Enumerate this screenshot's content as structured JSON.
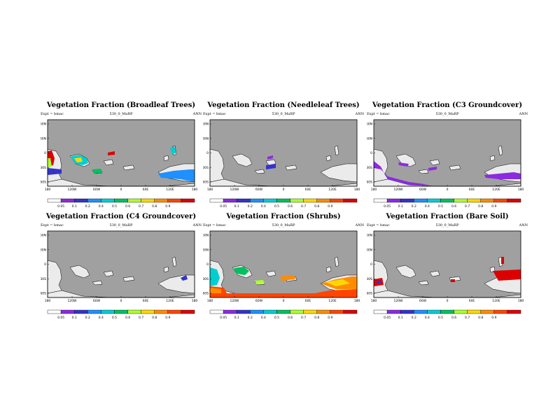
{
  "experiment_label": "Expt = bmac",
  "case_label": "530_0_MaRP",
  "season_label": "ANN",
  "lat_labels": [
    "60N",
    "30N",
    "0",
    "30S",
    "60S"
  ],
  "lon_labels": [
    "180",
    "120W",
    "60W",
    "0",
    "60E",
    "120E",
    "180"
  ],
  "colorbar": {
    "tick_labels": [
      "0.05",
      "0.1",
      "0.2",
      "0.4",
      "0.5",
      "0.6",
      "0.7",
      "0.8",
      "0.9"
    ],
    "colors": [
      "#ffffff",
      "#8a2be2",
      "#3333cc",
      "#1e90ff",
      "#00ced1",
      "#00c060",
      "#adff2f",
      "#ffd700",
      "#ff8c00",
      "#ff4500",
      "#dd0000"
    ]
  },
  "colors": {
    "ocean": "#a0a0a0",
    "land_bare": "#ebebeb",
    "outline": "#000000"
  },
  "panels": [
    {
      "title": "Vegetation Fraction (Broadleaf Trees)"
    },
    {
      "title": "Vegetation Fraction (Needleleaf Trees)"
    },
    {
      "title": "Vegetation Fraction (C3 Groundcover)"
    },
    {
      "title": "Vegetation Fraction (C4 Groundcover)"
    },
    {
      "title": "Vegetation Fraction (Shrubs)"
    },
    {
      "title": "Vegetation Fraction (Bare Soil)"
    }
  ]
}
